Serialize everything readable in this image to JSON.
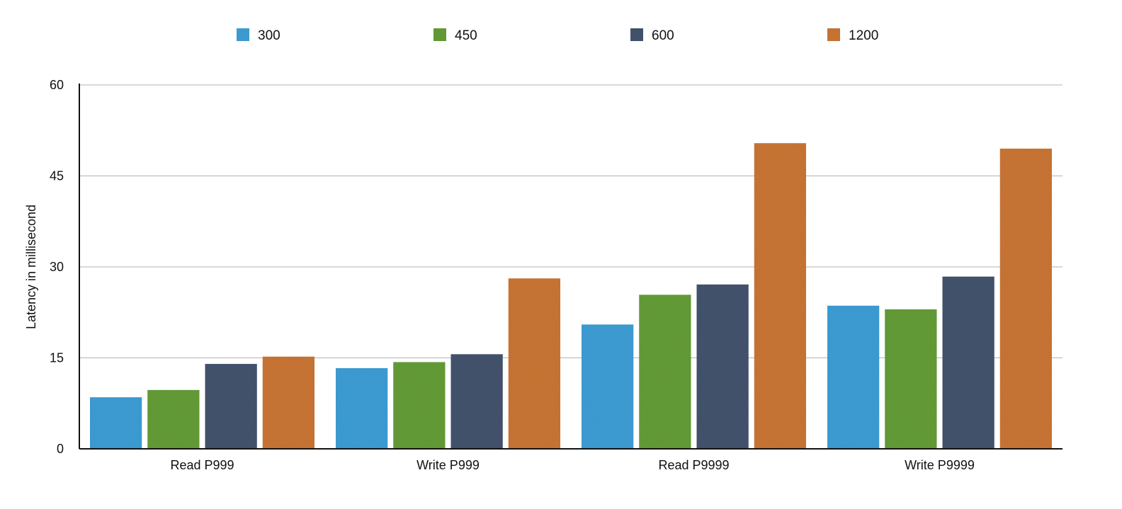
{
  "chart_data": {
    "type": "bar",
    "title": "",
    "xlabel": "",
    "ylabel": "Latency in millisecond",
    "categories": [
      "Read P999",
      "Write P999",
      "Read P9999",
      "Write P9999"
    ],
    "ylim": [
      0,
      60
    ],
    "yticks": [
      "0",
      "15",
      "30",
      "45",
      "60"
    ],
    "grid": true,
    "legend_position": "top",
    "series": [
      {
        "name": "300",
        "color": "#41a2da",
        "values": [
          8.5,
          13.3,
          20.5,
          23.6
        ]
      },
      {
        "name": "450",
        "color": "#67a13a",
        "values": [
          9.7,
          14.3,
          25.4,
          23.0
        ]
      },
      {
        "name": "600",
        "color": "#465671",
        "values": [
          14.0,
          15.6,
          27.1,
          28.4
        ]
      },
      {
        "name": "1200",
        "color": "#cf7937",
        "values": [
          15.2,
          28.1,
          50.4,
          49.5
        ]
      }
    ]
  }
}
